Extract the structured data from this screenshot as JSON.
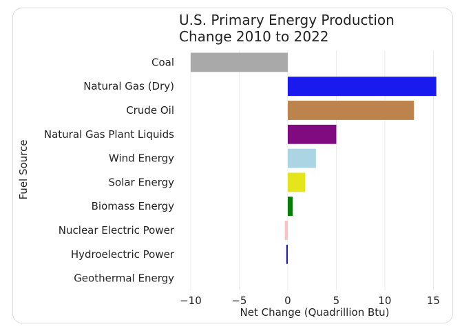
{
  "chart_data": {
    "type": "bar",
    "orientation": "horizontal",
    "title_lines": [
      "U.S. Primary Energy Production",
      "Change 2010 to 2022"
    ],
    "xlabel": "Net Change (Quadrillion Btu)",
    "ylabel": "Fuel Source",
    "xlim": [
      -11.2,
      16.6
    ],
    "xticks": [
      -10,
      -5,
      0,
      5,
      10,
      15
    ],
    "xtick_labels": [
      "−10",
      "−5",
      "0",
      "5",
      "10",
      "15"
    ],
    "grid": "vertical",
    "categories": [
      "Coal",
      "Natural Gas (Dry)",
      "Crude Oil",
      "Natural Gas Plant Liquids",
      "Wind Energy",
      "Solar Energy",
      "Biomass Energy",
      "Nuclear Electric Power",
      "Hydroelectric Power",
      "Geothermal Energy"
    ],
    "values": [
      -10.0,
      15.3,
      13.0,
      5.0,
      2.9,
      1.8,
      0.5,
      -0.3,
      -0.15,
      0.0
    ],
    "colors": [
      "#a9a9a9",
      "#1a1aee",
      "#bd834d",
      "#800a80",
      "#abd5e2",
      "#e5e51c",
      "#067d06",
      "#f7c0cb",
      "#1a1aa6",
      "#8b8b8b"
    ]
  }
}
